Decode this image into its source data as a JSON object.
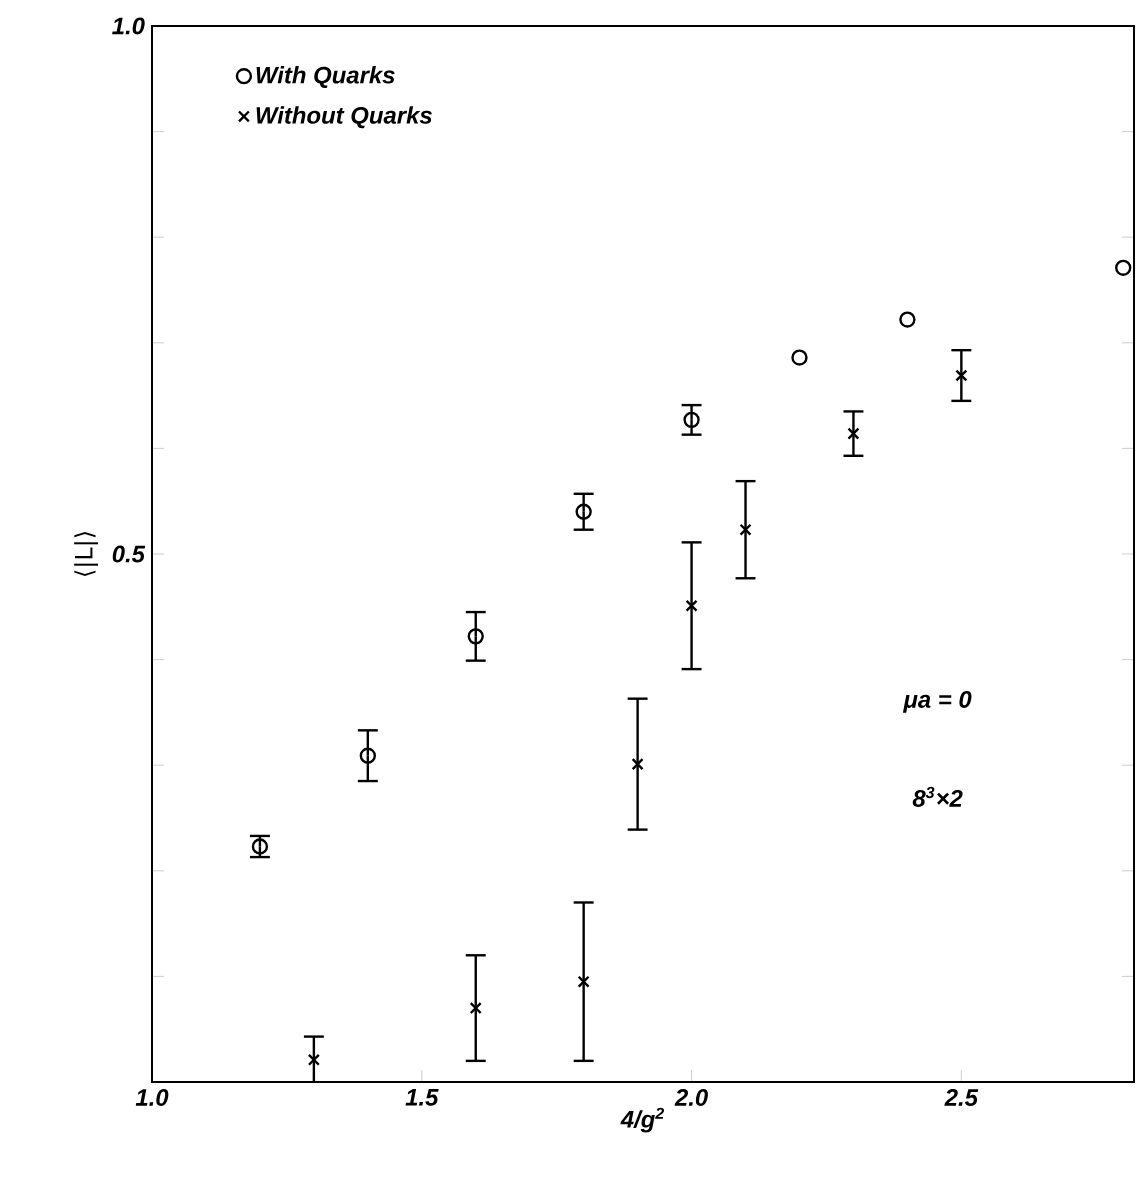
{
  "chart_data": {
    "type": "scatter",
    "xlabel": "4/g$^{2}$",
    "ylabel": "⟨|L|⟩",
    "xlim": [
      1.0,
      2.82
    ],
    "ylim": [
      0,
      1.0
    ],
    "xticks": [
      {
        "value": 1.0,
        "label": "1.0"
      },
      1.5,
      {
        "value": 2.0,
        "label": "2.0"
      },
      2.5
    ],
    "yticks": [
      {
        "value": 0,
        "label": null
      },
      {
        "value": 0.1,
        "label": null
      },
      {
        "value": 0.2,
        "label": null
      },
      {
        "value": 0.3,
        "label": null
      },
      {
        "value": 0.4,
        "label": null
      },
      0.5,
      {
        "value": 0.6,
        "label": null
      },
      {
        "value": 0.7,
        "label": null
      },
      {
        "value": 0.8,
        "label": null
      },
      {
        "value": 0.9,
        "label": null
      },
      {
        "value": 1.0,
        "label": "1.0"
      }
    ],
    "series": [
      {
        "name": "With Quarks",
        "color": "#000000",
        "marker": "circle",
        "x": [
          1.2,
          1.4,
          1.6,
          1.8,
          2.0,
          2.2,
          2.4,
          2.8
        ],
        "values": [
          0.223,
          0.309,
          0.422,
          0.54,
          0.627,
          0.686,
          0.722,
          0.771
        ],
        "errors": [
          0.01,
          0.024,
          0.023,
          0.017,
          0.014,
          null,
          null,
          null
        ]
      },
      {
        "name": "Without Quarks",
        "color": "#000000",
        "marker": "cross",
        "x": [
          1.3,
          1.6,
          1.8,
          1.9,
          2.0,
          2.1,
          2.3,
          2.5
        ],
        "values": [
          0.021,
          0.07,
          0.095,
          0.301,
          0.451,
          0.523,
          0.614,
          0.669
        ],
        "errors": [
          0.022,
          0.05,
          0.075,
          0.062,
          0.06,
          0.046,
          0.021,
          0.024
        ]
      }
    ],
    "legend": "top left",
    "grid": false,
    "annotations": [
      "μa = 0",
      "8$^{3}$×2"
    ]
  }
}
